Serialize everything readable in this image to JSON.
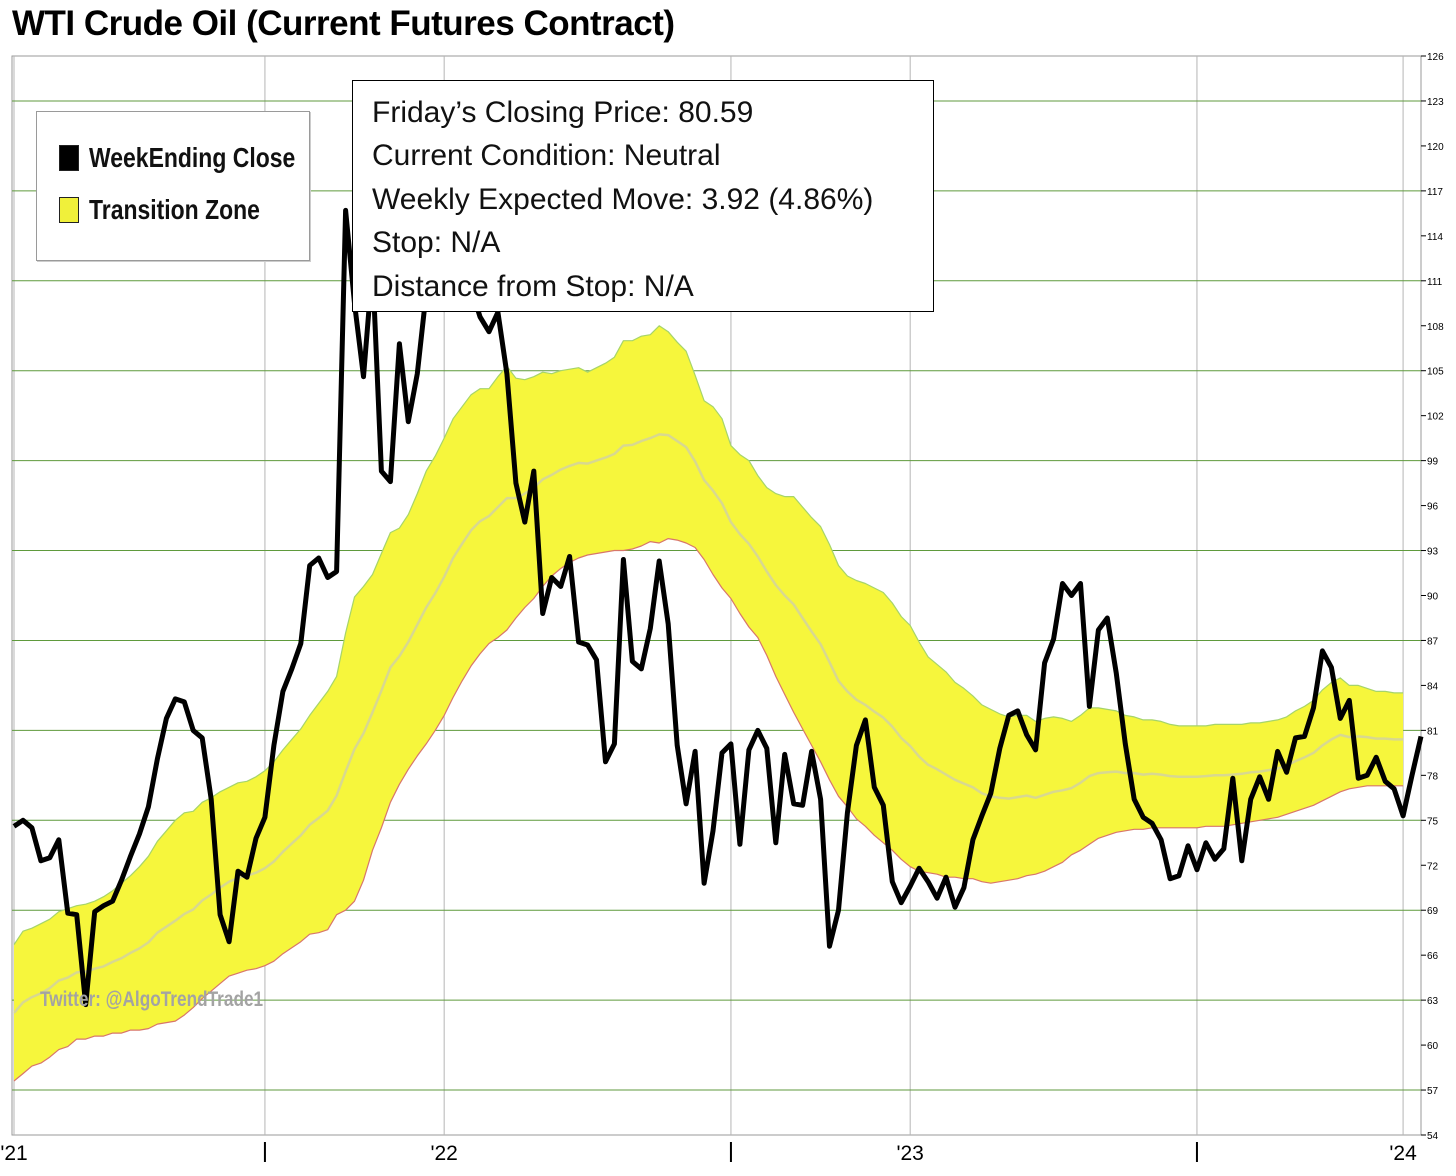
{
  "title": "WTI Crude Oil (Current Futures Contract)",
  "legend": [
    {
      "label": "WeekEnding Close",
      "color": "#000000"
    },
    {
      "label": "Transition Zone",
      "color": "#f0f03a"
    }
  ],
  "info_box": {
    "lines": [
      "Friday’s Closing Price: 80.59",
      "Current Condition: Neutral",
      "Weekly Expected Move: 3.92 (4.86%)",
      "Stop: N/A",
      "Distance from Stop: N/A"
    ]
  },
  "watermark": "Twitter: @AlgoTrendTrade1",
  "colors": {
    "zone_fill": "#f6f63c",
    "zone_upper_edge": "#a6d46a",
    "zone_lower_edge": "#d8766a",
    "zone_mid": "#d8d890",
    "close_line": "#000000",
    "grid_horizontal": "#5f9a3c",
    "grid_vertical": "#b5b5b5"
  },
  "chart_data": {
    "type": "line",
    "title": "WTI Crude Oil (Current Futures Contract)",
    "ylim": [
      54,
      126
    ],
    "y_ticks": [
      54,
      57,
      60,
      63,
      66,
      69,
      72,
      75,
      78,
      81,
      84,
      87,
      90,
      93,
      96,
      99,
      102,
      105,
      108,
      111,
      114,
      117,
      120,
      123,
      126
    ],
    "y_gridlines": [
      57,
      63,
      69,
      75,
      81,
      87,
      93,
      99,
      105,
      111,
      117,
      123
    ],
    "x_range": [
      0,
      157
    ],
    "x_tick_labels": [
      {
        "label": "'21",
        "week": 0
      },
      {
        "label": "'22",
        "week": 48
      },
      {
        "label": "'23",
        "week": 100
      },
      {
        "label": "'24",
        "week": 155
      }
    ],
    "x_quarter_ticks": [
      28,
      80,
      132
    ],
    "grid": true,
    "legend_position": "top-left",
    "series": [
      {
        "name": "WeekEnding Close",
        "values": [
          74.6,
          75.0,
          74.5,
          72.3,
          72.5,
          73.7,
          68.8,
          68.7,
          62.7,
          68.9,
          69.3,
          69.6,
          71.0,
          72.6,
          74.1,
          75.9,
          79.1,
          81.8,
          83.1,
          82.9,
          81.0,
          80.5,
          76.4,
          68.7,
          66.9,
          71.6,
          71.2,
          73.8,
          75.2,
          80.0,
          83.6,
          85.1,
          86.8,
          92.0,
          92.5,
          91.2,
          91.6,
          115.7,
          109.5,
          104.6,
          112.0,
          98.3,
          97.6,
          106.8,
          101.6,
          104.8,
          110.2,
          115.3,
          114.5,
          113.0,
          111.8,
          110.5,
          108.6,
          107.6,
          108.9,
          104.8,
          97.5,
          94.9,
          98.3,
          88.8,
          91.2,
          90.6,
          92.6,
          86.9,
          86.7,
          85.7,
          78.9,
          80.1,
          92.4,
          85.6,
          85.1,
          87.8,
          92.3,
          88.1,
          80.0,
          76.1,
          79.6,
          70.8,
          74.3,
          79.5,
          80.1,
          73.4,
          79.7,
          81.0,
          79.8,
          73.5,
          79.4,
          76.1,
          76.0,
          79.6,
          76.4,
          66.6,
          69.0,
          75.5,
          80.0,
          81.7,
          77.2,
          76.0,
          70.9,
          69.5,
          70.6,
          71.8,
          70.9,
          69.8,
          71.2,
          69.2,
          70.5,
          73.7,
          75.3,
          76.8,
          79.8,
          82.0,
          82.3,
          80.7,
          79.7,
          85.5,
          87.1,
          90.8,
          90.0,
          90.8,
          82.6,
          87.7,
          88.5,
          84.8,
          80.1,
          76.4,
          75.2,
          74.8,
          73.7,
          71.1,
          71.3,
          73.3,
          71.7,
          73.5,
          72.4,
          73.1,
          77.8,
          72.3,
          76.4,
          77.9,
          76.4,
          79.6,
          78.2,
          80.5,
          80.6,
          82.5,
          86.3,
          85.2,
          81.8,
          83.0,
          77.8,
          78.0,
          79.2,
          77.6,
          77.1,
          75.3,
          78.0,
          80.6
        ]
      },
      {
        "name": "Transition Zone",
        "upper": [
          66.7,
          67.6,
          67.8,
          68.1,
          68.4,
          68.9,
          69.1,
          69.3,
          69.4,
          69.6,
          69.9,
          70.3,
          70.8,
          71.3,
          71.9,
          72.6,
          73.6,
          74.3,
          75.0,
          75.5,
          75.6,
          76.2,
          76.5,
          76.9,
          77.2,
          77.5,
          77.6,
          77.9,
          78.3,
          78.9,
          79.7,
          80.4,
          81.1,
          82.0,
          82.8,
          83.6,
          84.6,
          87.5,
          89.9,
          90.6,
          91.4,
          92.8,
          94.2,
          94.5,
          95.4,
          96.8,
          98.3,
          99.3,
          100.5,
          101.8,
          102.6,
          103.4,
          103.8,
          103.8,
          104.6,
          105.3,
          104.5,
          104.4,
          104.6,
          104.9,
          104.8,
          105.0,
          105.1,
          105.2,
          104.9,
          105.2,
          105.5,
          105.9,
          107.0,
          107.0,
          107.3,
          107.4,
          108.0,
          107.6,
          106.9,
          106.3,
          104.7,
          103.0,
          102.6,
          101.8,
          100.0,
          99.4,
          99.0,
          98.0,
          97.2,
          96.8,
          96.6,
          96.6,
          95.9,
          95.2,
          94.6,
          93.4,
          92.0,
          91.3,
          91.0,
          90.8,
          90.5,
          90.2,
          89.5,
          88.6,
          88.0,
          86.9,
          85.9,
          85.4,
          84.9,
          84.2,
          83.8,
          83.3,
          82.7,
          82.4,
          82.1,
          81.9,
          82.0,
          82.0,
          81.6,
          81.8,
          81.9,
          81.8,
          81.6,
          82.0,
          82.5,
          82.5,
          82.4,
          82.3,
          82.0,
          81.9,
          81.7,
          81.7,
          81.6,
          81.4,
          81.3,
          81.3,
          81.3,
          81.3,
          81.4,
          81.4,
          81.4,
          81.4,
          81.5,
          81.5,
          81.6,
          81.7,
          81.9,
          82.3,
          82.6,
          83.0,
          83.7,
          84.2,
          84.5,
          84.0,
          84.0,
          83.8,
          83.6,
          83.6,
          83.5,
          83.5
        ],
        "lower": [
          57.6,
          58.1,
          58.6,
          58.8,
          59.2,
          59.7,
          59.9,
          60.4,
          60.4,
          60.6,
          60.6,
          60.8,
          60.8,
          61.0,
          61.0,
          61.1,
          61.4,
          61.5,
          61.6,
          62.0,
          62.5,
          63.1,
          63.6,
          64.1,
          64.6,
          64.8,
          65.0,
          65.1,
          65.3,
          65.6,
          66.1,
          66.5,
          66.9,
          67.4,
          67.5,
          67.7,
          68.7,
          69.0,
          69.6,
          71.0,
          73.0,
          74.5,
          76.2,
          77.4,
          78.4,
          79.3,
          80.1,
          81.0,
          82.0,
          83.2,
          84.3,
          85.3,
          86.1,
          86.8,
          87.2,
          87.7,
          88.5,
          89.2,
          89.8,
          90.6,
          91.3,
          91.8,
          92.2,
          92.5,
          92.7,
          92.8,
          92.9,
          93.0,
          93.0,
          93.1,
          93.3,
          93.6,
          93.5,
          93.8,
          93.7,
          93.5,
          93.2,
          92.4,
          91.4,
          90.5,
          89.8,
          88.8,
          87.9,
          87.2,
          86.0,
          84.6,
          83.4,
          82.2,
          81.1,
          80.0,
          78.9,
          77.7,
          76.6,
          75.9,
          75.1,
          74.6,
          74.0,
          73.5,
          73.0,
          72.4,
          71.9,
          71.6,
          71.5,
          71.4,
          71.2,
          71.2,
          71.1,
          71.1,
          70.9,
          70.8,
          70.9,
          71.0,
          71.1,
          71.3,
          71.4,
          71.6,
          71.9,
          72.2,
          72.7,
          73.0,
          73.4,
          73.8,
          74.0,
          74.2,
          74.3,
          74.4,
          74.4,
          74.5,
          74.5,
          74.5,
          74.5,
          74.5,
          74.5,
          74.6,
          74.6,
          74.6,
          74.7,
          74.8,
          74.9,
          75.0,
          75.1,
          75.2,
          75.4,
          75.6,
          75.8,
          76.0,
          76.3,
          76.6,
          76.9,
          77.1,
          77.2,
          77.3,
          77.3,
          77.3,
          77.3,
          77.3
        ]
      }
    ]
  }
}
